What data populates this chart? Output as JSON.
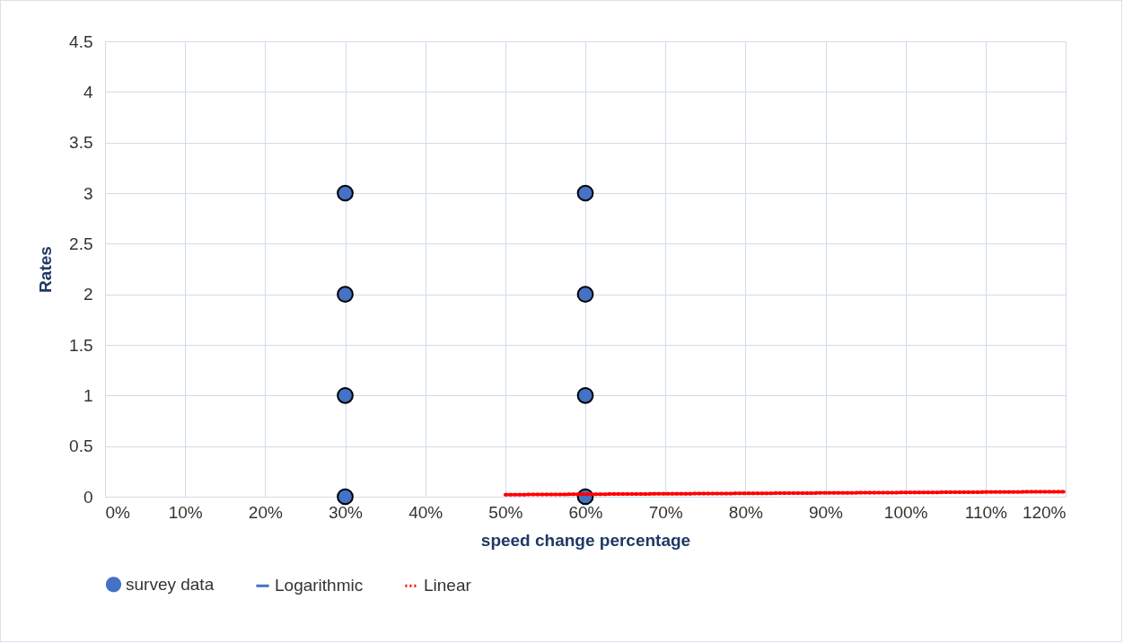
{
  "chart_data": {
    "type": "scatter",
    "xlabel": "speed change percentage",
    "ylabel": "Rates",
    "xlim": [
      0,
      120
    ],
    "ylim": [
      0,
      4.5
    ],
    "xticks": [
      {
        "value": 0,
        "label": "0%"
      },
      {
        "value": 10,
        "label": "10%"
      },
      {
        "value": 20,
        "label": "20%"
      },
      {
        "value": 30,
        "label": "30%"
      },
      {
        "value": 40,
        "label": "40%"
      },
      {
        "value": 50,
        "label": "50%"
      },
      {
        "value": 60,
        "label": "60%"
      },
      {
        "value": 70,
        "label": "70%"
      },
      {
        "value": 80,
        "label": "80%"
      },
      {
        "value": 90,
        "label": "90%"
      },
      {
        "value": 100,
        "label": "100%"
      },
      {
        "value": 110,
        "label": "110%"
      },
      {
        "value": 120,
        "label": "120%"
      }
    ],
    "yticks": [
      0,
      0.5,
      1,
      1.5,
      2,
      2.5,
      3,
      3.5,
      4,
      4.5
    ],
    "grid": true,
    "legend": "bottom",
    "series": [
      {
        "name": "survey data",
        "type": "scatter",
        "marker": "circle",
        "color": "#4472c4",
        "x": [
          30,
          30,
          30,
          30,
          60,
          60,
          60,
          60
        ],
        "values": [
          0,
          1,
          2,
          3,
          0,
          1,
          2,
          3
        ]
      },
      {
        "name": "Logarithmic",
        "type": "line",
        "line_style": "solid",
        "color": "#4472c4"
      },
      {
        "name": "Linear",
        "type": "line",
        "line_style": "dotted",
        "color": "#ff0000",
        "x": [
          50,
          120
        ],
        "values": [
          0.02,
          0.05
        ]
      }
    ]
  }
}
